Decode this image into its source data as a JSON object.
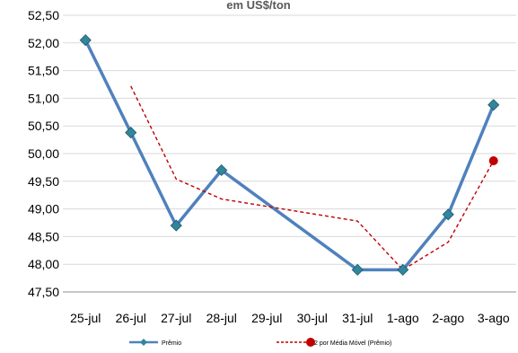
{
  "chart_data": {
    "type": "line",
    "title": "em US$/ton",
    "categories": [
      "25-jul",
      "26-jul",
      "27-jul",
      "28-jul",
      "29-jul",
      "30-jul",
      "31-jul",
      "1-ago",
      "2-ago",
      "3-ago"
    ],
    "ylim": [
      47.5,
      52.5
    ],
    "yticks": [
      "47,50",
      "48,00",
      "48,50",
      "49,00",
      "49,50",
      "50,00",
      "50,50",
      "51,00",
      "51,50",
      "52,00",
      "52,50"
    ],
    "ytick_values": [
      47.5,
      48.0,
      48.5,
      49.0,
      49.5,
      50.0,
      50.5,
      51.0,
      51.5,
      52.0,
      52.5
    ],
    "grid": "horizontal",
    "legend_position": "bottom",
    "series": [
      {
        "name": "Prêmio",
        "color": "#4f81bd",
        "marker": "diamond",
        "x": [
          "25-jul",
          "26-jul",
          "27-jul",
          "28-jul",
          "31-jul",
          "1-ago",
          "2-ago",
          "3-ago"
        ],
        "values": [
          52.05,
          50.38,
          48.7,
          49.7,
          47.9,
          47.9,
          48.9,
          50.88
        ]
      },
      {
        "name": "2 por Média Móvel (Prêmio)",
        "color": "#c00000",
        "style": "dashed",
        "marker": "circle",
        "x": [
          "26-jul",
          "27-jul",
          "28-jul",
          "31-jul",
          "1-ago",
          "2-ago",
          "3-ago"
        ],
        "values": [
          51.22,
          49.54,
          49.18,
          48.78,
          47.9,
          48.4,
          49.87
        ]
      }
    ]
  }
}
